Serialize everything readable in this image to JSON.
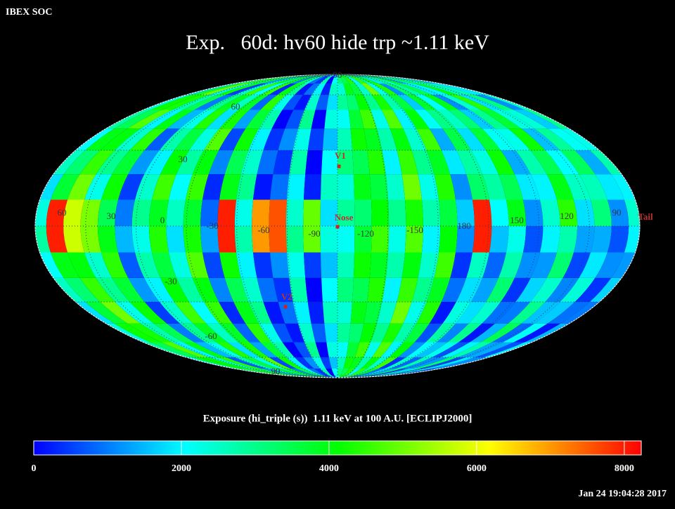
{
  "header": {
    "source": "IBEX SOC",
    "title": "Exp.   60d: hv60 hide trp ~1.11 keV",
    "timestamp": "Jan 24 19:04:28 2017"
  },
  "map": {
    "latitude_labels": [
      "90",
      "60",
      "30",
      "-30",
      "-60",
      "90"
    ],
    "longitude_labels": [
      "60",
      "30",
      "0",
      "-30",
      "-60",
      "-90",
      "-120",
      "-150",
      "180",
      "150",
      "120",
      "90"
    ],
    "markers": [
      {
        "label": "V1"
      },
      {
        "label": "Nose"
      },
      {
        "label": "V2"
      },
      {
        "label": "Tail"
      }
    ]
  },
  "colorbar": {
    "label": "Exposure (hi_triple (s))  1.11 keV at 100 A.U. [ECLIPJ2000]",
    "lim": [
      0,
      8230
    ],
    "ticks": [
      0,
      2000,
      4000,
      6000,
      8000
    ]
  }
}
